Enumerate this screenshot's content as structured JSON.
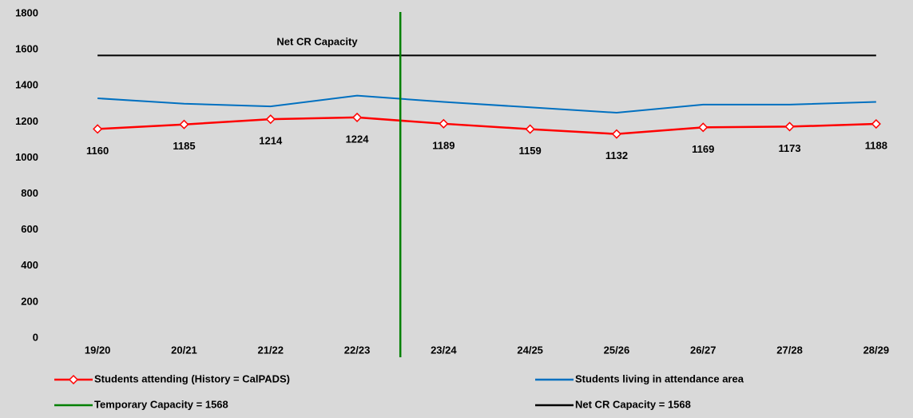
{
  "chart_data": {
    "type": "line",
    "categories": [
      "19/20",
      "20/21",
      "21/22",
      "22/23",
      "23/24",
      "24/25",
      "25/26",
      "26/27",
      "27/28",
      "28/29"
    ],
    "series": [
      {
        "name": "Students attending (History = CalPADS)",
        "color": "#ff0000",
        "marker": "diamond",
        "values": [
          1160,
          1185,
          1214,
          1224,
          1189,
          1159,
          1132,
          1169,
          1173,
          1188
        ],
        "data_labels": true
      },
      {
        "name": "Students living in attendance area",
        "color": "#0070c0",
        "values": [
          1330,
          1300,
          1285,
          1345,
          1310,
          1280,
          1250,
          1295,
          1295,
          1310
        ]
      },
      {
        "name": "Net CR Capacity = 1568",
        "color": "#000000",
        "values": [
          1568,
          1568,
          1568,
          1568,
          1568,
          1568,
          1568,
          1568,
          1568,
          1568
        ]
      }
    ],
    "vertical_line": {
      "name": "Temporary Capacity = 1568",
      "color": "#008000"
    },
    "annotation": "Net CR Capacity",
    "ylim": [
      0,
      1800
    ],
    "yticks": [
      0,
      200,
      400,
      600,
      800,
      1000,
      1200,
      1400,
      1600,
      1800
    ]
  }
}
